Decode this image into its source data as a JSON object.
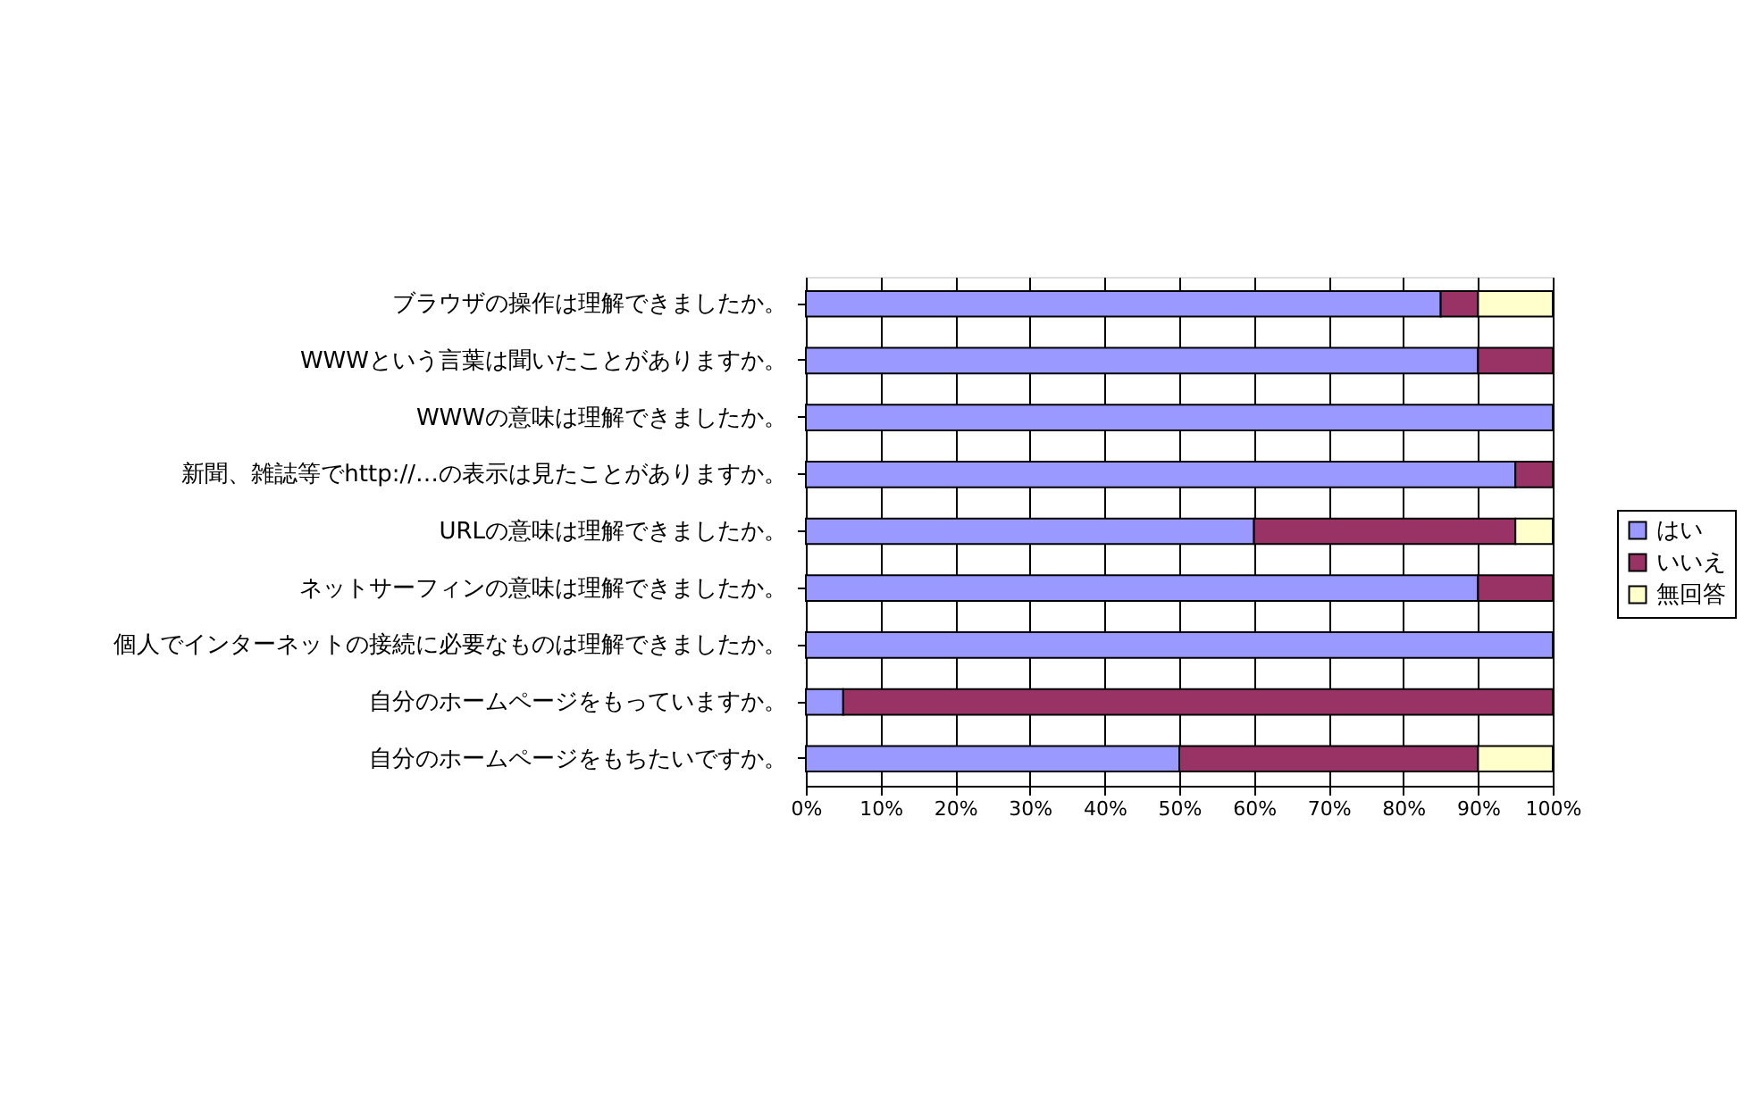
{
  "chart_data": {
    "type": "bar",
    "orientation": "horizontal",
    "stacked": true,
    "categories": [
      "ブラウザの操作は理解できましたか。",
      "WWWという言葉は聞いたことがありますか。",
      "WWWの意味は理解できましたか。",
      "新聞、雑誌等でhttp://…の表示は見たことがありますか。",
      "URLの意味は理解できましたか。",
      "ネットサーフィンの意味は理解できましたか。",
      "個人でインターネットの接続に必要なものは理解できましたか。",
      "自分のホームページをもっていますか。",
      "自分のホームページをもちたいですか。"
    ],
    "series": [
      {
        "name": "はい",
        "color": "#9999ff",
        "values": [
          85,
          90,
          100,
          95,
          60,
          90,
          100,
          5,
          50
        ]
      },
      {
        "name": "いいえ",
        "color": "#993366",
        "values": [
          5,
          10,
          0,
          5,
          35,
          10,
          0,
          95,
          40
        ]
      },
      {
        "name": "無回答",
        "color": "#ffffcc",
        "values": [
          10,
          0,
          0,
          0,
          5,
          0,
          0,
          0,
          10
        ]
      }
    ],
    "xlim": [
      0,
      100
    ],
    "xticks": [
      {
        "value": 0,
        "label": "0%"
      },
      {
        "value": 10,
        "label": "10%"
      },
      {
        "value": 20,
        "label": "20%"
      },
      {
        "value": 30,
        "label": "30%"
      },
      {
        "value": 40,
        "label": "40%"
      },
      {
        "value": 50,
        "label": "50%"
      },
      {
        "value": 60,
        "label": "60%"
      },
      {
        "value": 70,
        "label": "70%"
      },
      {
        "value": 80,
        "label": "80%"
      },
      {
        "value": 90,
        "label": "90%"
      },
      {
        "value": 100,
        "label": "100%"
      }
    ],
    "grid": "x",
    "legend": "right"
  }
}
